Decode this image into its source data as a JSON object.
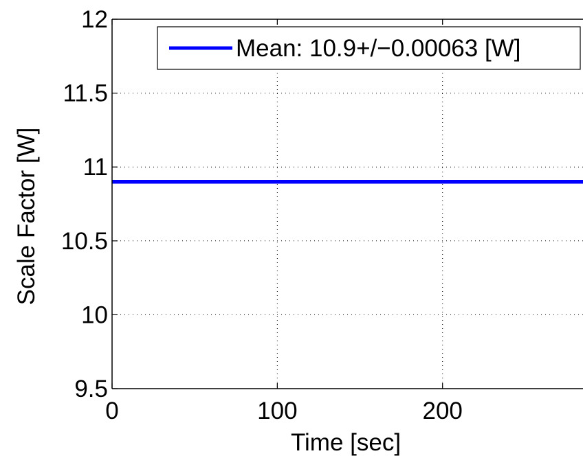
{
  "chart_data": {
    "type": "line",
    "title": "",
    "xlabel": "Time [sec]",
    "ylabel": "Scale Factor [W]",
    "xlim": [
      0,
      285
    ],
    "ylim": [
      9.5,
      12
    ],
    "xticks": [
      0,
      100,
      200
    ],
    "xtick_labels": [
      "0",
      "100",
      "200"
    ],
    "yticks": [
      9.5,
      10,
      10.5,
      11,
      11.5,
      12
    ],
    "ytick_labels": [
      "9.5",
      "10",
      "10.5",
      "11",
      "11.5",
      "12"
    ],
    "grid": true,
    "legend_position": "top-right",
    "series": [
      {
        "name": "Mean: 10.9+/−0.00063 [W]",
        "color": "#0000ff",
        "x": [
          0,
          285
        ],
        "y": [
          10.9,
          10.9
        ]
      }
    ]
  }
}
